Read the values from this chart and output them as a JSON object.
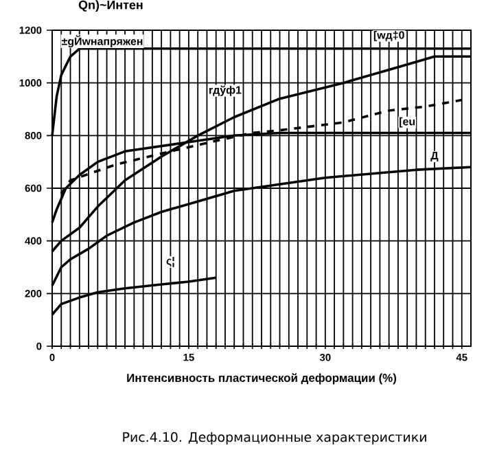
{
  "chart_data": {
    "type": "line",
    "title": "Qn)~Интен",
    "xlabel": "Интенсивность пластической деформации (%)",
    "xlim": [
      0,
      46
    ],
    "ylim": [
      0,
      1200
    ],
    "yticks": [
      0,
      200,
      400,
      600,
      800,
      1000,
      1200
    ],
    "xticks": [
      0,
      {
        "value": 1,
        "label": null
      },
      {
        "value": 2,
        "label": null
      },
      {
        "value": 3,
        "label": null
      },
      {
        "value": 4,
        "label": null
      },
      {
        "value": 5,
        "label": null
      },
      {
        "value": 6,
        "label": null
      },
      {
        "value": 7,
        "label": null
      },
      {
        "value": 8,
        "label": null
      },
      {
        "value": 9,
        "label": null
      },
      {
        "value": 10,
        "label": null
      },
      {
        "value": 11,
        "label": null
      },
      {
        "value": 12,
        "label": null
      },
      {
        "value": 13,
        "label": null
      },
      {
        "value": 14,
        "label": null
      },
      15,
      {
        "value": 16,
        "label": null
      },
      {
        "value": 17,
        "label": null
      },
      {
        "value": 18,
        "label": null
      },
      {
        "value": 19,
        "label": null
      },
      {
        "value": 20,
        "label": null
      },
      {
        "value": 21,
        "label": null
      },
      {
        "value": 22,
        "label": null
      },
      {
        "value": 23,
        "label": null
      },
      {
        "value": 24,
        "label": null
      },
      {
        "value": 25,
        "label": null
      },
      {
        "value": 26,
        "label": null
      },
      {
        "value": 27,
        "label": null
      },
      {
        "value": 28,
        "label": null
      },
      {
        "value": 29,
        "label": null
      },
      30,
      {
        "value": 31,
        "label": null
      },
      {
        "value": 32,
        "label": null
      },
      {
        "value": 33,
        "label": null
      },
      {
        "value": 34,
        "label": null
      },
      {
        "value": 35,
        "label": null
      },
      {
        "value": 36,
        "label": null
      },
      {
        "value": 37,
        "label": null
      },
      {
        "value": 38,
        "label": null
      },
      {
        "value": 39,
        "label": null
      },
      {
        "value": 40,
        "label": null
      },
      {
        "value": 41,
        "label": null
      },
      {
        "value": 42,
        "label": null
      },
      {
        "value": 43,
        "label": null
      },
      {
        "value": 44,
        "label": null
      },
      45
    ],
    "grid": true,
    "marker": "none",
    "series": [
      {
        "color": "#000000",
        "x": [
          0,
          0.5,
          1,
          2,
          3,
          5,
          10,
          20,
          30,
          40,
          46
        ],
        "values": [
          800,
          950,
          1030,
          1100,
          1130,
          1130,
          1130,
          1130,
          1130,
          1130,
          1130
        ]
      },
      {
        "color": "#000000",
        "x": [
          0,
          1,
          3,
          5,
          8,
          12,
          16,
          20,
          25,
          32,
          38,
          42,
          46
        ],
        "values": [
          360,
          400,
          450,
          530,
          630,
          720,
          800,
          870,
          940,
          1000,
          1060,
          1100,
          1100
        ]
      },
      {
        "color": "#000000",
        "x": [
          0,
          0.5,
          1.5,
          3,
          5,
          8,
          14,
          20,
          25,
          30,
          46
        ],
        "values": [
          470,
          520,
          600,
          650,
          700,
          740,
          770,
          800,
          810,
          810,
          810
        ]
      },
      {
        "color": "#000000",
        "line_style": "dashed",
        "x": [
          1,
          2,
          7,
          13,
          18,
          22,
          25,
          32,
          37,
          41,
          45
        ],
        "values": [
          580,
          630,
          690,
          740,
          780,
          810,
          820,
          850,
          895,
          910,
          935
        ]
      },
      {
        "color": "#000000",
        "x": [
          0,
          1,
          2,
          4,
          6,
          9,
          12,
          16,
          20,
          25,
          30,
          35,
          40,
          46
        ],
        "values": [
          230,
          300,
          330,
          370,
          420,
          470,
          510,
          550,
          590,
          615,
          640,
          655,
          670,
          680
        ]
      },
      {
        "color": "#000000",
        "x": [
          0,
          1,
          3,
          5,
          8,
          12,
          15,
          18
        ],
        "values": [
          120,
          160,
          185,
          205,
          220,
          235,
          245,
          260
        ]
      }
    ],
    "annotations": [
      "±gЙwнапряжен",
      {
        "text": "[wд‡0",
        "x": 37,
        "y": 1178
      },
      {
        "text": "rдўф1",
        "x": 19,
        "y": 970
      },
      {
        "text": "[eu",
        "x": 39,
        "y": 850
      },
      {
        "text": "Д",
        "x": 42,
        "y": 720
      },
      {
        "text": "ς¦",
        "x": 13,
        "y": 320
      },
      "Рис.4.10. Деформационные характеристики"
    ]
  }
}
